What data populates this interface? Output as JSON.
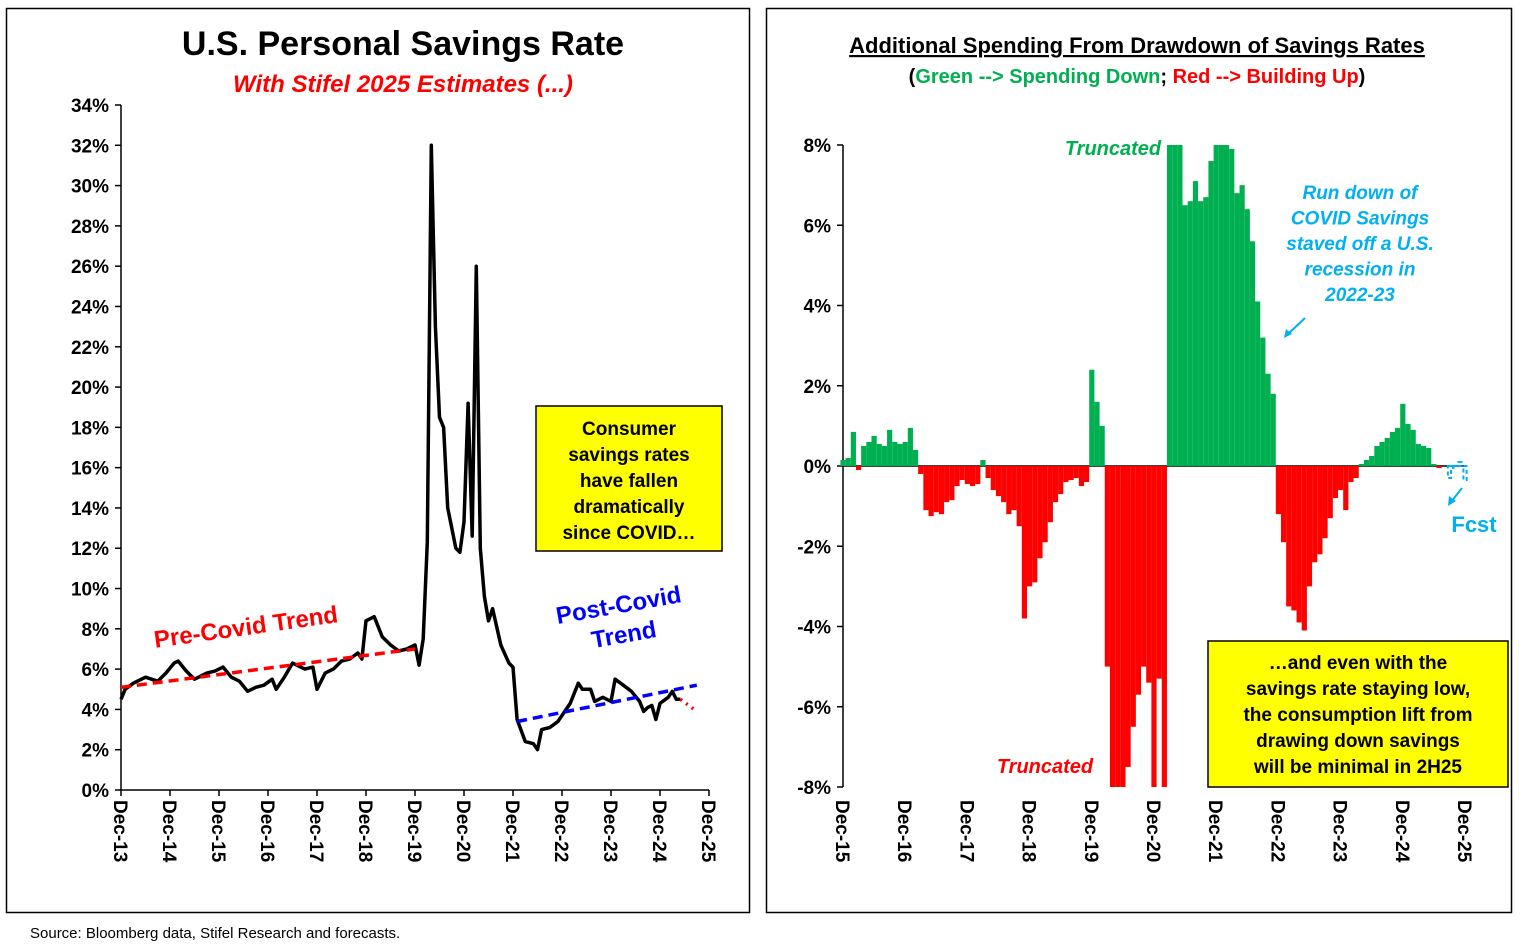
{
  "chart_data": [
    {
      "type": "line",
      "title": "U.S. Personal Savings Rate",
      "subtitle": "With Stifel 2025 Estimates (...)",
      "subtitle_color": "#ff0000",
      "xlim": [
        "Dec-13",
        "Dec-25"
      ],
      "xticks": [
        "Dec-13",
        "Dec-14",
        "Dec-15",
        "Dec-16",
        "Dec-17",
        "Dec-18",
        "Dec-19",
        "Dec-20",
        "Dec-21",
        "Dec-22",
        "Dec-23",
        "Dec-24",
        "Dec-25"
      ],
      "ylim": [
        0,
        34
      ],
      "yticks": [
        {
          "value": 0,
          "label": "0%"
        },
        {
          "value": 2,
          "label": "2%"
        },
        {
          "value": 4,
          "label": "4%"
        },
        {
          "value": 6,
          "label": "6%"
        },
        {
          "value": 8,
          "label": "8%"
        },
        {
          "value": 10,
          "label": "10%"
        },
        {
          "value": 12,
          "label": "12%"
        },
        {
          "value": 14,
          "label": "14%"
        },
        {
          "value": 16,
          "label": "16%"
        },
        {
          "value": 18,
          "label": "18%"
        },
        {
          "value": 20,
          "label": "20%"
        },
        {
          "value": 22,
          "label": "22%"
        },
        {
          "value": 24,
          "label": "24%"
        },
        {
          "value": 26,
          "label": "26%"
        },
        {
          "value": 28,
          "label": "28%"
        },
        {
          "value": 30,
          "label": "30%"
        },
        {
          "value": 32,
          "label": "32%"
        },
        {
          "value": 34,
          "label": "34%"
        }
      ],
      "series": [
        {
          "color": "#000000",
          "style": "solid",
          "x": [
            "Dec-13",
            "Jan-14",
            "Mar-14",
            "Jun-14",
            "Sep-14",
            "Nov-14",
            "Jan-15",
            "Feb-15",
            "Apr-15",
            "Jun-15",
            "Sep-15",
            "Nov-15",
            "Jan-16",
            "Mar-16",
            "May-16",
            "Jul-16",
            "Sep-16",
            "Nov-16",
            "Jan-17",
            "Feb-17",
            "Apr-17",
            "Jun-17",
            "Sep-17",
            "Nov-17",
            "Dec-17",
            "Feb-18",
            "Apr-18",
            "Jun-18",
            "Aug-18",
            "Oct-18",
            "Nov-18",
            "Dec-18",
            "Feb-19",
            "Apr-19",
            "Jun-19",
            "Aug-19",
            "Oct-19",
            "Dec-19",
            "Jan-20",
            "Feb-20",
            "Mar-20",
            "Apr-20",
            "May-20",
            "Jun-20",
            "Jul-20",
            "Aug-20",
            "Sep-20",
            "Oct-20",
            "Nov-20",
            "Dec-20",
            "Jan-21",
            "Feb-21",
            "Mar-21",
            "Apr-21",
            "May-21",
            "Jun-21",
            "Jul-21",
            "Sep-21",
            "Nov-21",
            "Dec-21",
            "Jan-22",
            "Mar-22",
            "May-22",
            "Jun-22",
            "Jul-22",
            "Sep-22",
            "Nov-22",
            "Dec-22",
            "Feb-23",
            "Apr-23",
            "May-23",
            "Jul-23",
            "Aug-23",
            "Oct-23",
            "Dec-23",
            "Jan-24",
            "Mar-24",
            "May-24",
            "Jul-24",
            "Aug-24",
            "Sep-24",
            "Oct-24",
            "Nov-24",
            "Dec-24",
            "Feb-25",
            "Mar-25",
            "Apr-25",
            "May-25"
          ],
          "values": [
            4.5,
            5.0,
            5.3,
            5.6,
            5.4,
            5.8,
            6.3,
            6.4,
            5.9,
            5.5,
            5.8,
            5.9,
            6.1,
            5.6,
            5.4,
            4.9,
            5.1,
            5.2,
            5.5,
            5.0,
            5.6,
            6.3,
            6.0,
            6.1,
            5.0,
            5.8,
            6.0,
            6.4,
            6.5,
            6.8,
            6.5,
            8.4,
            8.6,
            7.6,
            7.2,
            6.9,
            7.0,
            7.2,
            6.2,
            7.5,
            12.3,
            32.0,
            23.0,
            18.5,
            18.0,
            14.0,
            13.0,
            12.0,
            11.8,
            13.3,
            19.2,
            12.6,
            26.0,
            12.0,
            9.6,
            8.4,
            9.0,
            7.2,
            6.3,
            6.1,
            3.5,
            2.4,
            2.3,
            2.0,
            3.0,
            3.1,
            3.4,
            3.7,
            4.3,
            5.3,
            5.0,
            5.0,
            4.4,
            4.6,
            4.4,
            5.5,
            5.2,
            4.9,
            4.4,
            3.9,
            4.1,
            4.2,
            3.5,
            4.3,
            4.6,
            4.9,
            4.5,
            4.5
          ]
        },
        {
          "color": "#ff0000",
          "style": "dotted",
          "x": [
            "May-25",
            "Sep-25"
          ],
          "values": [
            4.5,
            3.9
          ]
        },
        {
          "color": "#ff0000",
          "style": "dashed",
          "x": [
            "Dec-13",
            "Dec-19"
          ],
          "values": [
            5.1,
            7.0
          ]
        },
        {
          "color": "#0000ff",
          "style": "dashed",
          "x": [
            "Jan-22",
            "Sep-25"
          ],
          "values": [
            3.4,
            5.2
          ]
        }
      ],
      "annotations": [
        {
          "text": "Pre-Covid Trend",
          "color": "#ff0000"
        },
        {
          "lines": [
            "Post-Covid",
            "Trend"
          ],
          "color": "#0000ff"
        },
        {
          "lines": [
            "Consumer",
            "savings rates",
            "have fallen",
            "dramatically",
            "since COVID…"
          ],
          "color": "#000000",
          "box": "#ffff00"
        }
      ]
    },
    {
      "type": "bar",
      "title": "Additional Spending From Drawdown of Savings Rates",
      "subtitle": [
        {
          "text": "(",
          "color": "#000000"
        },
        {
          "text": "Green --> Spending Down",
          "color": "#00b050"
        },
        {
          "text": "; ",
          "color": "#000000"
        },
        {
          "text": "Red --> Building Up",
          "color": "#ff0000"
        },
        {
          "text": ")",
          "color": "#000000"
        }
      ],
      "xlim": [
        "Dec-15",
        "Dec-25"
      ],
      "xticks": [
        "Dec-15",
        "Dec-16",
        "Dec-17",
        "Dec-18",
        "Dec-19",
        "Dec-20",
        "Dec-21",
        "Dec-22",
        "Dec-23",
        "Dec-24",
        "Dec-25"
      ],
      "ylim": [
        -8,
        8
      ],
      "yticks": [
        {
          "value": -8,
          "label": "-8%"
        },
        {
          "value": -6,
          "label": "-6%"
        },
        {
          "value": -4,
          "label": "-4%"
        },
        {
          "value": -2,
          "label": "-2%"
        },
        {
          "value": 0,
          "label": "0%"
        },
        {
          "value": 2,
          "label": "2%"
        },
        {
          "value": 4,
          "label": "4%"
        },
        {
          "value": 6,
          "label": "6%"
        },
        {
          "value": 8,
          "label": "8%"
        }
      ],
      "series": [
        {
          "positive_color": "#00b050",
          "negative_color": "#ff0000",
          "style": "solid",
          "x": [
            "Dec-15",
            "Jan-16",
            "Feb-16",
            "Mar-16",
            "Apr-16",
            "May-16",
            "Jun-16",
            "Jul-16",
            "Aug-16",
            "Sep-16",
            "Oct-16",
            "Nov-16",
            "Dec-16",
            "Jan-17",
            "Feb-17",
            "Mar-17",
            "Apr-17",
            "May-17",
            "Jun-17",
            "Jul-17",
            "Aug-17",
            "Sep-17",
            "Oct-17",
            "Nov-17",
            "Dec-17",
            "Jan-18",
            "Feb-18",
            "Mar-18",
            "Apr-18",
            "May-18",
            "Jun-18",
            "Jul-18",
            "Aug-18",
            "Sep-18",
            "Oct-18",
            "Nov-18",
            "Dec-18",
            "Jan-19",
            "Feb-19",
            "Mar-19",
            "Apr-19",
            "May-19",
            "Jun-19",
            "Jul-19",
            "Aug-19",
            "Sep-19",
            "Oct-19",
            "Nov-19",
            "Dec-19",
            "Jan-20",
            "Feb-20",
            "Mar-20",
            "Apr-20",
            "May-20",
            "Jun-20",
            "Jul-20",
            "Aug-20",
            "Sep-20",
            "Oct-20",
            "Nov-20",
            "Dec-20",
            "Jan-21",
            "Feb-21",
            "Mar-21",
            "Apr-21",
            "May-21",
            "Jun-21",
            "Jul-21",
            "Aug-21",
            "Sep-21",
            "Oct-21",
            "Nov-21",
            "Dec-21",
            "Jan-22",
            "Feb-22",
            "Mar-22",
            "Apr-22",
            "May-22",
            "Jun-22",
            "Jul-22",
            "Aug-22",
            "Sep-22",
            "Oct-22",
            "Nov-22",
            "Dec-22",
            "Jan-23",
            "Feb-23",
            "Mar-23",
            "Apr-23",
            "May-23",
            "Jun-23",
            "Jul-23",
            "Aug-23",
            "Sep-23",
            "Oct-23",
            "Nov-23",
            "Dec-23",
            "Jan-24",
            "Feb-24",
            "Mar-24",
            "Apr-24",
            "May-24",
            "Jun-24",
            "Jul-24",
            "Aug-24",
            "Sep-24",
            "Oct-24",
            "Nov-24",
            "Dec-24",
            "Jan-25",
            "Feb-25",
            "Mar-25",
            "Apr-25",
            "May-25",
            "Jun-25",
            "Jul-25"
          ],
          "values": [
            0.15,
            0.2,
            0.85,
            -0.1,
            0.5,
            0.6,
            0.75,
            0.55,
            0.5,
            0.9,
            0.6,
            0.55,
            0.6,
            0.95,
            0.4,
            -0.2,
            -1.1,
            -1.25,
            -1.15,
            -1.2,
            -0.9,
            -0.85,
            -0.5,
            -0.35,
            -0.45,
            -0.5,
            -0.45,
            0.15,
            -0.3,
            -0.6,
            -0.75,
            -0.9,
            -1.2,
            -1.1,
            -1.5,
            -3.8,
            -3.0,
            -2.9,
            -2.3,
            -1.9,
            -1.4,
            -0.9,
            -0.7,
            -0.4,
            -0.35,
            -0.3,
            -0.5,
            -0.4,
            2.4,
            1.6,
            1.0,
            -5.0,
            -8,
            -8,
            -8,
            -7.5,
            -6.5,
            -5.7,
            -5.0,
            -5.4,
            -8,
            -5.3,
            -8,
            8,
            8,
            8,
            6.5,
            6.6,
            7.1,
            6.6,
            6.7,
            7.6,
            8,
            8,
            8,
            7.9,
            6.8,
            7.0,
            6.4,
            5.6,
            4.1,
            3.2,
            2.3,
            1.8,
            -1.2,
            -1.9,
            -3.5,
            -3.6,
            -3.9,
            -4.1,
            -3.0,
            -2.4,
            -2.2,
            -1.8,
            -1.3,
            -0.8,
            -0.6,
            -1.1,
            -0.4,
            -0.3,
            0.05,
            0.15,
            0.25,
            0.5,
            0.6,
            0.7,
            0.85,
            0.95,
            1.55,
            1.05,
            0.9,
            0.55,
            0.5,
            0.45,
            0.05,
            -0.05
          ]
        },
        {
          "color": "#00b0f0",
          "style": "dashed",
          "x": [
            "Sep-25",
            "Oct-25",
            "Nov-25",
            "Dec-25"
          ],
          "values": [
            -0.3,
            -0.05,
            0.1,
            -0.35
          ]
        }
      ],
      "annotations": [
        {
          "text": "Truncated",
          "color": "#00b050"
        },
        {
          "text": "Truncated",
          "color": "#ff0000"
        },
        {
          "lines": [
            "Run down of",
            "COVID Savings",
            "staved off a U.S.",
            "recession in",
            "2022-23"
          ],
          "color": "#00b0f0"
        },
        {
          "text": "Fcst",
          "color": "#00b0f0"
        },
        {
          "lines": [
            "…and even with the",
            "savings rate staying low,",
            "the consumption lift from",
            "drawing down savings",
            "will be minimal in 2H25"
          ],
          "color": "#000000",
          "box": "#ffff00"
        }
      ]
    }
  ],
  "source": "Source: Bloomberg data, Stifel Research and forecasts."
}
